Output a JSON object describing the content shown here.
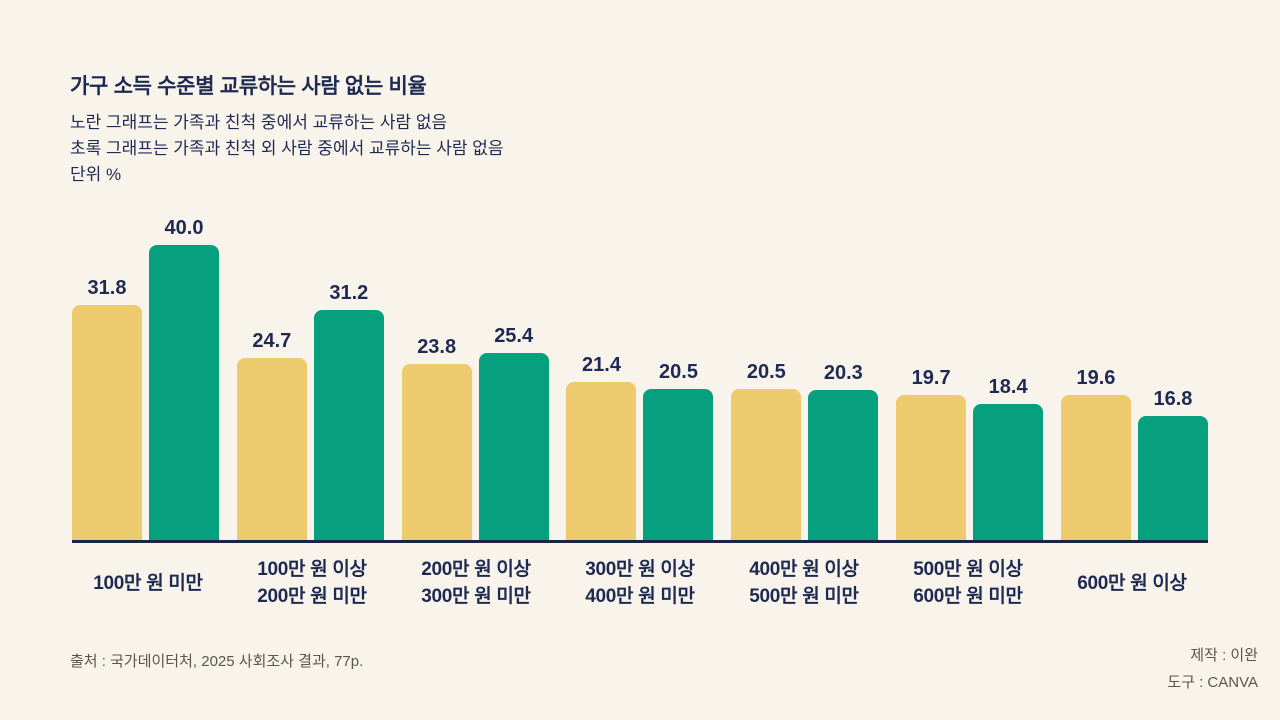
{
  "header": {
    "title": "가구 소득 수준별 교류하는 사람 없는 비율",
    "subtitle_lines": [
      "노란 그래프는 가족과 친척 중에서 교류하는 사람 없음",
      "초록 그래프는 가족과 친척 외 사람 중에서 교류하는 사람 없음",
      "단위 %"
    ]
  },
  "chart_data": {
    "type": "bar",
    "title": "가구 소득 수준별 교류하는 사람 없는 비율",
    "unit": "%",
    "categories": [
      "100만 원 미만",
      "100만 원 이상\n200만 원 미만",
      "200만 원 이상\n300만 원 미만",
      "300만 원 이상\n400만 원 미만",
      "400만 원 이상\n500만 원 미만",
      "500만 원 이상\n600만 원 미만",
      "600만 원 이상"
    ],
    "series": [
      {
        "key": "yellow",
        "name": "가족과 친척 중에서 교류하는 사람 없음",
        "color": "#ECCA6D",
        "values": [
          31.8,
          24.7,
          23.8,
          21.4,
          20.5,
          19.7,
          19.6
        ]
      },
      {
        "key": "green",
        "name": "가족과 친척 외 사람 중에서 교류하는 사람 없음",
        "color": "#06A07E",
        "values": [
          40.0,
          31.2,
          25.4,
          20.5,
          20.3,
          18.4,
          16.8
        ]
      }
    ],
    "ylim": [
      0,
      43
    ],
    "grid": false,
    "legend_position": "none (described in subtitle)",
    "axis_line_color": "#1B2547",
    "background_color": "#F8F4EB",
    "text_color": "#1F2A52"
  },
  "footer": {
    "source": "출처 : 국가데이터처, 2025 사회조사 결과, 77p.",
    "credit_lines": [
      "제작 : 이완",
      "도구 : CANVA"
    ]
  }
}
